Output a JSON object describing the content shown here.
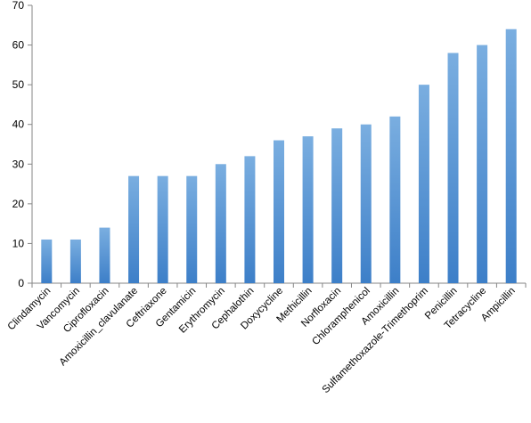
{
  "chart_data": {
    "type": "bar",
    "title": "",
    "xlabel": "",
    "ylabel": "",
    "ylim": [
      0,
      70
    ],
    "yticks": [
      0,
      10,
      20,
      30,
      40,
      50,
      60,
      70
    ],
    "grid": false,
    "legend": "none",
    "bar_color_top": "#7aaee0",
    "bar_color_bottom": "#3d7fc8",
    "categories": [
      "Clindamycin",
      "Vancomycin",
      "Ciprofloxacin",
      "Amoxicillin_clavulanate",
      "Ceftriaxone",
      "Gentamicin",
      "Erythromycin",
      "Cephalothin",
      "Doxycycline",
      "Methicillin",
      "Norfloxacin",
      "Chloramphenicol",
      "Amoxicillin",
      "Sulfamethoxazole-Trimethoprim",
      "Penicillin",
      "Tetracycline",
      "Ampicillin"
    ],
    "values": [
      11,
      11,
      14,
      27,
      27,
      27,
      30,
      32,
      36,
      37,
      39,
      40,
      42,
      50,
      58,
      60,
      64
    ]
  }
}
